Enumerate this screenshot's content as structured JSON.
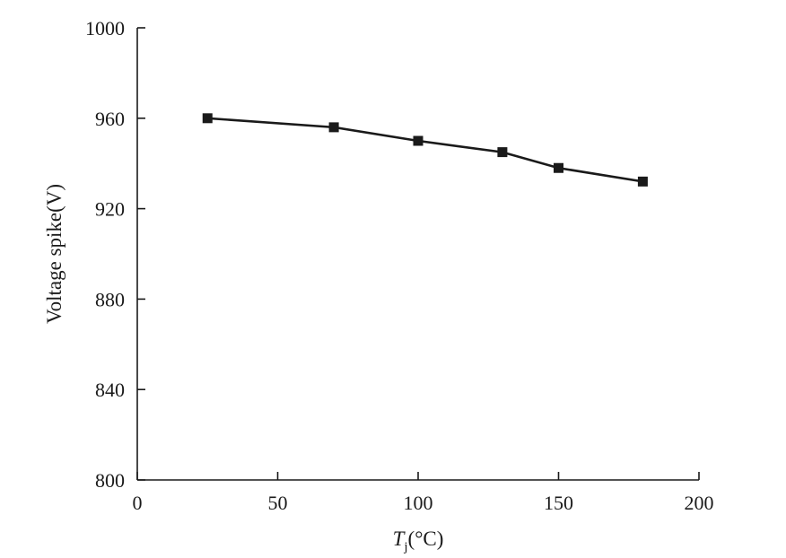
{
  "chart_data": {
    "type": "line",
    "xlabel_main": "T",
    "xlabel_sub": "j",
    "xlabel_unit": "(°C)",
    "ylabel": "Voltage spike(V)",
    "xlim": [
      0,
      200
    ],
    "ylim": [
      800,
      1000
    ],
    "x_ticks": [
      "0",
      "50",
      "100",
      "150",
      "200"
    ],
    "y_ticks": [
      "800",
      "840",
      "880",
      "920",
      "960",
      "1000"
    ],
    "grid": false,
    "legend": "none",
    "marker": "square",
    "series": [
      {
        "x": [
          25,
          70,
          100,
          130,
          150,
          180
        ],
        "y": [
          960,
          956,
          950,
          945,
          938,
          932
        ]
      }
    ]
  }
}
